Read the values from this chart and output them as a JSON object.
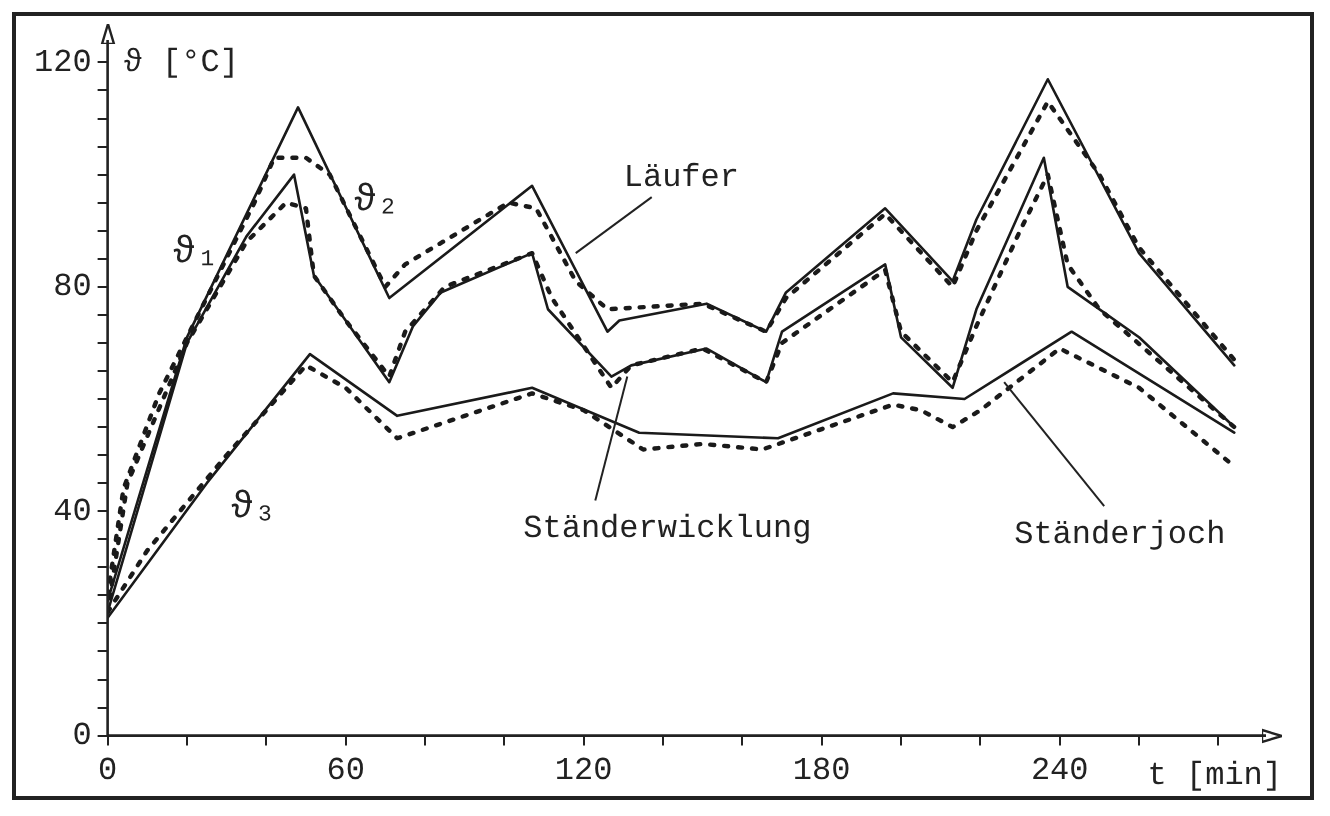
{
  "chart_data": {
    "type": "line",
    "xlabel": "t [min]",
    "ylabel": "ϑ [°C]",
    "xlim": [
      0,
      292
    ],
    "ylim": [
      0,
      124
    ],
    "xticks": [
      0,
      {
        "value": 20,
        "label": null
      },
      {
        "value": 40,
        "label": null
      },
      60,
      {
        "value": 80,
        "label": null
      },
      {
        "value": 100,
        "label": null
      },
      120,
      {
        "value": 140,
        "label": null
      },
      {
        "value": 160,
        "label": null
      },
      180,
      {
        "value": 200,
        "label": null
      },
      {
        "value": 220,
        "label": null
      },
      240,
      {
        "value": 260,
        "label": null
      },
      {
        "value": 280,
        "label": null
      }
    ],
    "yticks": [
      0,
      {
        "value": 5,
        "label": null
      },
      {
        "value": 10,
        "label": null
      },
      {
        "value": 15,
        "label": null
      },
      {
        "value": 20,
        "label": null
      },
      {
        "value": 25,
        "label": null
      },
      {
        "value": 30,
        "label": null
      },
      {
        "value": 35,
        "label": null
      },
      40,
      {
        "value": 45,
        "label": null
      },
      {
        "value": 50,
        "label": null
      },
      {
        "value": 55,
        "label": null
      },
      {
        "value": 60,
        "label": null
      },
      {
        "value": 65,
        "label": null
      },
      {
        "value": 70,
        "label": null
      },
      {
        "value": 75,
        "label": null
      },
      80,
      {
        "value": 85,
        "label": null
      },
      {
        "value": 90,
        "label": null
      },
      {
        "value": 95,
        "label": null
      },
      {
        "value": 100,
        "label": null
      },
      {
        "value": 105,
        "label": null
      },
      {
        "value": 110,
        "label": null
      },
      {
        "value": 115,
        "label": null
      },
      120
    ],
    "grid": false,
    "legend": false,
    "marker": "none",
    "series": [
      {
        "color": "#1a1a1a",
        "line_style": "solid",
        "x": [
          0,
          20,
          48,
          71,
          107,
          126,
          129,
          151,
          166,
          171,
          196,
          213,
          219,
          237,
          260,
          284
        ],
        "values": [
          24,
          71,
          112,
          78,
          98,
          72,
          74,
          77,
          72,
          79,
          94,
          81,
          92,
          117,
          86,
          66
        ]
      },
      {
        "color": "#1a1a1a",
        "line_style": "solid",
        "x": [
          0,
          20,
          35,
          47,
          52,
          71,
          77,
          84,
          107,
          111,
          127,
          132,
          151,
          166,
          170,
          196,
          200,
          213,
          219,
          236,
          242,
          260,
          284
        ],
        "values": [
          22,
          70,
          89,
          100,
          82,
          63,
          73,
          79,
          86,
          76,
          64,
          66,
          69,
          63,
          72,
          84,
          71,
          62,
          76,
          103,
          80,
          71,
          55
        ]
      },
      {
        "color": "#1a1a1a",
        "line_style": "solid",
        "x": [
          0,
          25,
          51,
          73,
          107,
          134,
          169,
          198,
          216,
          243,
          284
        ],
        "values": [
          21,
          45,
          68,
          57,
          62,
          54,
          53,
          61,
          60,
          72,
          54
        ]
      },
      {
        "color": "#1a1a1a",
        "line_style": "dotted",
        "x": [
          0,
          4,
          13,
          20,
          37,
          42,
          50,
          56,
          70,
          75,
          101,
          108,
          118,
          126,
          150,
          166,
          171,
          196,
          213,
          219,
          237,
          250,
          260,
          284
        ],
        "values": [
          25,
          44,
          61,
          71,
          95,
          103,
          103,
          100,
          80,
          84,
          95,
          94,
          81,
          76,
          77,
          72,
          78,
          93,
          80,
          90,
          113,
          100,
          87,
          67
        ]
      },
      {
        "color": "#1a1a1a",
        "line_style": "dotted",
        "x": [
          0,
          5,
          20,
          35,
          45,
          50,
          52,
          60,
          71,
          75,
          85,
          107,
          112,
          127,
          132,
          150,
          166,
          170,
          196,
          200,
          213,
          219,
          230,
          237,
          242,
          250,
          284
        ],
        "values": [
          22,
          45,
          70,
          88,
          95,
          94,
          82,
          74,
          64,
          72,
          80,
          86,
          78,
          62,
          66,
          69,
          63,
          70,
          83,
          72,
          63,
          73,
          90,
          100,
          84,
          76,
          55
        ]
      },
      {
        "color": "#1a1a1a",
        "line_style": "dotted",
        "x": [
          0,
          10,
          30,
          50,
          60,
          73,
          90,
          107,
          120,
          135,
          150,
          165,
          198,
          205,
          213,
          220,
          240,
          260,
          284
        ],
        "values": [
          22,
          33,
          50,
          66,
          62,
          53,
          57,
          61,
          58,
          51,
          52,
          51,
          59,
          58,
          55,
          58,
          69,
          62,
          48
        ]
      }
    ],
    "annotations": [
      {
        "text": "ϑ₂",
        "x": 58,
        "y": 97
      },
      {
        "text": "ϑ₁",
        "x": 35,
        "y": 89
      },
      {
        "text": "ϑ₃",
        "x": 25,
        "y": 45
      },
      {
        "text": "Läufer",
        "x": 118,
        "y": 86
      },
      {
        "text": "Ständerwicklung",
        "x": 131,
        "y": 64
      },
      {
        "text": "Ständerjoch",
        "x": 226,
        "y": 63
      }
    ]
  }
}
